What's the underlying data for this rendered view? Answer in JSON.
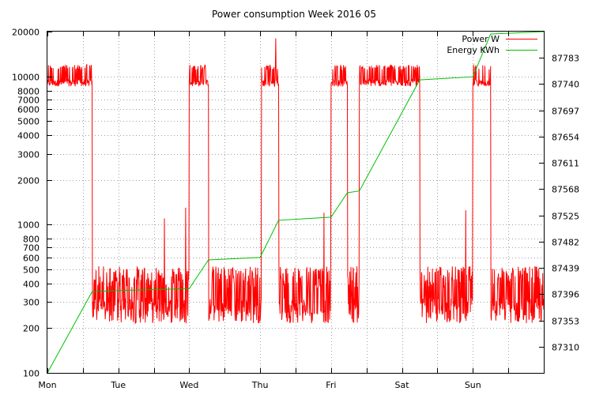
{
  "chart_data": {
    "type": "line",
    "title": "Power consumption Week 2016 05",
    "x_tick_labels": [
      "Mon",
      "Tue",
      "Wed",
      "Thu",
      "Fri",
      "Sat",
      "Sun"
    ],
    "x_range_days": [
      0,
      7
    ],
    "y_left": {
      "scale": "log",
      "range": [
        100,
        20000
      ],
      "ticks": [
        100,
        200,
        300,
        400,
        500,
        600,
        700,
        800,
        1000,
        2000,
        3000,
        4000,
        5000,
        6000,
        7000,
        8000,
        10000,
        20000
      ],
      "tick_labels": [
        "100",
        "200",
        "300",
        "400",
        "500",
        "600",
        "700",
        "800",
        "1000",
        "2000",
        "3000",
        "4000",
        "5000",
        "6000",
        "7000",
        "8000",
        "10000",
        "20000"
      ]
    },
    "y_right": {
      "scale": "linear",
      "range": [
        87267,
        87826
      ],
      "ticks": [
        87310,
        87353,
        87396,
        87439,
        87482,
        87525,
        87568,
        87611,
        87654,
        87697,
        87740,
        87783
      ],
      "tick_labels": [
        "87310",
        "87353",
        "87396",
        "87439",
        "87482",
        "87525",
        "87568",
        "87611",
        "87654",
        "87697",
        "87740",
        "87783"
      ]
    },
    "grid": true,
    "legend": "top-right",
    "series": [
      {
        "name": "Power W",
        "color": "#ff0000",
        "axis": "left",
        "high_level_w": 9000,
        "high_level_peak_w": 12000,
        "low_level_w": 300,
        "low_level_peak_w": 500,
        "high_periods_days": [
          [
            0.0,
            0.63
          ],
          [
            2.0,
            2.27
          ],
          [
            3.02,
            3.26
          ],
          [
            4.0,
            4.23
          ],
          [
            4.4,
            5.25
          ],
          [
            6.0,
            6.25
          ]
        ],
        "spikes": [
          {
            "x": 3.22,
            "y": 18000
          },
          {
            "x": 1.65,
            "y": 1100
          },
          {
            "x": 1.95,
            "y": 1300
          },
          {
            "x": 3.9,
            "y": 1200
          },
          {
            "x": 5.9,
            "y": 1250
          }
        ]
      },
      {
        "name": "Energy KWh",
        "color": "#00c000",
        "axis": "right",
        "x": [
          0.0,
          0.63,
          1.0,
          2.0,
          2.27,
          3.0,
          3.26,
          4.0,
          4.23,
          4.4,
          5.25,
          6.0,
          6.25,
          7.0
        ],
        "y": [
          87267,
          87400,
          87402,
          87405,
          87452,
          87456,
          87517,
          87522,
          87562,
          87565,
          87747,
          87752,
          87822,
          87826
        ]
      }
    ]
  }
}
